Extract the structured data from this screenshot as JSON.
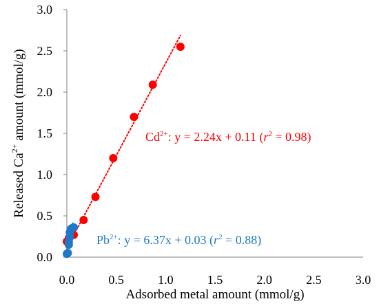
{
  "chart_data": {
    "type": "scatter",
    "xlabel": "Adsorbed metal amount (mmol/g)",
    "ylabel": {
      "pre": "Released Ca",
      "sup": "2+",
      "post": " amount (mmol/g)"
    },
    "xlim": [
      0,
      3.0
    ],
    "ylim": [
      0,
      3.0
    ],
    "x_ticks": [
      "0.0",
      "0.5",
      "1.0",
      "1.5",
      "2.0",
      "2.5",
      "3.0"
    ],
    "y_ticks": [
      "0.0",
      "0.5",
      "1.0",
      "1.5",
      "2.0",
      "2.5",
      "3.0"
    ],
    "grid": false,
    "series": [
      {
        "name": "Cd2+",
        "color": "#ff0000",
        "points": [
          {
            "x": 0.0,
            "y": 0.19
          },
          {
            "x": 0.02,
            "y": 0.23
          },
          {
            "x": 0.04,
            "y": 0.26
          },
          {
            "x": 0.07,
            "y": 0.27
          },
          {
            "x": 0.17,
            "y": 0.45
          },
          {
            "x": 0.29,
            "y": 0.73
          },
          {
            "x": 0.47,
            "y": 1.2
          },
          {
            "x": 0.68,
            "y": 1.7
          },
          {
            "x": 0.87,
            "y": 2.09
          },
          {
            "x": 1.15,
            "y": 2.55
          }
        ],
        "trendline": {
          "slope": 2.24,
          "intercept": 0.11,
          "x_range": [
            0.0,
            1.15
          ]
        },
        "annotation": {
          "ion": "Cd",
          "charge": "2+",
          "formula": ": y = 2.24x + 0.11 (",
          "r": "r",
          "r_exp": "2",
          "r_value": " = 0.98)"
        }
      },
      {
        "name": "Pb2+",
        "color": "#1f78c8",
        "points": [
          {
            "x": 0.0,
            "y": 0.04
          },
          {
            "x": 0.01,
            "y": 0.05
          },
          {
            "x": 0.02,
            "y": 0.15
          },
          {
            "x": 0.02,
            "y": 0.19
          },
          {
            "x": 0.03,
            "y": 0.24
          },
          {
            "x": 0.03,
            "y": 0.3
          },
          {
            "x": 0.04,
            "y": 0.34
          },
          {
            "x": 0.05,
            "y": 0.35
          },
          {
            "x": 0.07,
            "y": 0.36
          }
        ],
        "trendline": {
          "slope": 6.37,
          "intercept": 0.03,
          "x_range": [
            0.0,
            0.06
          ]
        },
        "annotation": {
          "ion": "Pb",
          "charge": "2+",
          "formula": ": y = 6.37x + 0.03 (",
          "r": "r",
          "r_exp": "2",
          "r_value": " = 0.88)"
        }
      }
    ]
  }
}
